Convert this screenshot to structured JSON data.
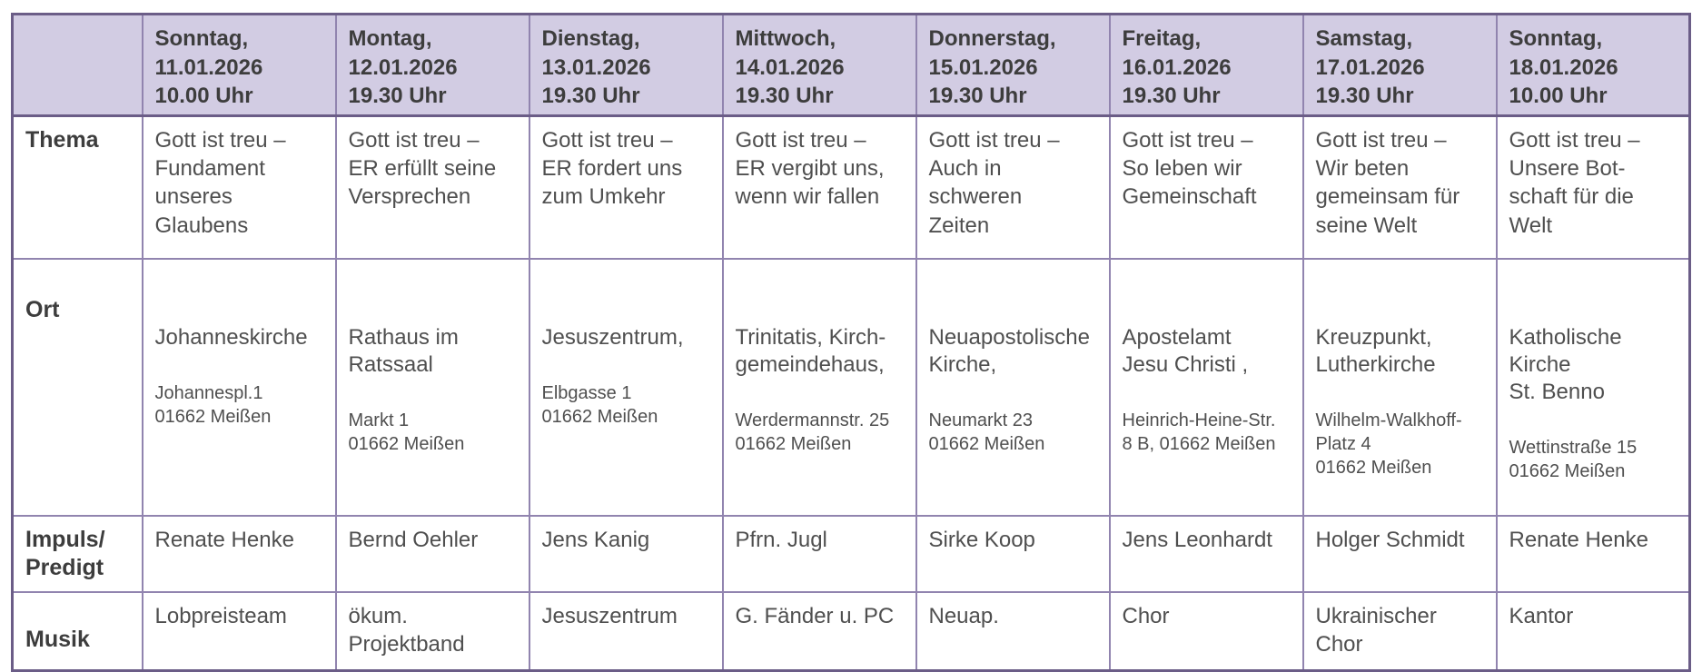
{
  "colors": {
    "header_bg": "#d2cce3",
    "border_inner": "#9184af",
    "border_outer": "#6b5d87",
    "text_dark": "#3d3d3d",
    "text_body": "#4f4f4f",
    "page_bg": "#ffffff"
  },
  "header": {
    "corner": "",
    "days": [
      "Sonntag,\n11.01.2026\n10.00 Uhr",
      "Montag,\n12.01.2026\n19.30 Uhr",
      "Dienstag,\n13.01.2026\n19.30 Uhr",
      "Mittwoch,\n14.01.2026\n19.30 Uhr",
      "Donnerstag,\n15.01.2026\n19.30 Uhr",
      "Freitag,\n16.01.2026\n19.30 Uhr",
      "Samstag,\n17.01.2026\n19.30 Uhr",
      "Sonntag,\n18.01.2026\n10.00 Uhr"
    ]
  },
  "rows": {
    "thema": {
      "label": "Thema",
      "cells": [
        "Gott ist treu –\nFundament\nunseres\nGlaubens",
        "Gott ist treu –\nER erfüllt seine\nVersprechen",
        "Gott ist treu –\nER fordert uns\nzum Umkehr",
        "Gott ist treu –\nER vergibt uns,\nwenn wir fallen",
        "Gott ist treu –\nAuch in\nschweren\nZeiten",
        "Gott ist treu –\nSo leben wir\nGemeinschaft",
        "Gott ist treu –\nWir beten\ngemeinsam für\nseine Welt",
        "Gott ist treu –\nUnsere Bot-\nschaft für die\nWelt"
      ]
    },
    "ort": {
      "label": "Ort",
      "cells": [
        {
          "name": "Johanneskirche",
          "address": "Johannespl.1\n01662 Meißen"
        },
        {
          "name": "Rathaus im\nRatssaal",
          "address": "Markt 1\n01662 Meißen"
        },
        {
          "name": "Jesuszentrum,",
          "address": "Elbgasse 1\n01662 Meißen"
        },
        {
          "name": "Trinitatis, Kirch-\ngemeindehaus,",
          "address": "Werdermannstr. 25\n01662 Meißen"
        },
        {
          "name": "Neuapostolische\nKirche,",
          "address": "Neumarkt 23\n01662 Meißen"
        },
        {
          "name": "Apostelamt\nJesu Christi ,",
          "address": "Heinrich-Heine-Str.\n8 B, 01662 Meißen"
        },
        {
          "name": "Kreuzpunkt,\nLutherkirche",
          "address": "Wilhelm-Walkhoff-\nPlatz 4\n01662 Meißen"
        },
        {
          "name": "Katholische\nKirche\nSt. Benno",
          "address": "Wettinstraße 15\n01662 Meißen"
        }
      ]
    },
    "impuls": {
      "label": "Impuls/\nPredigt",
      "cells": [
        "Renate Henke",
        "Bernd Oehler",
        "Jens Kanig",
        "Pfrn. Jugl",
        "Sirke Koop",
        "Jens Leonhardt",
        "Holger Schmidt",
        "Renate Henke"
      ]
    },
    "musik": {
      "label": "Musik",
      "cells": [
        "Lobpreisteam",
        "ökum.\nProjektband",
        "Jesuszentrum",
        "G. Fänder u. PC",
        "Neuap.",
        "Chor",
        "Ukrainischer\nChor",
        "Kantor"
      ]
    }
  }
}
